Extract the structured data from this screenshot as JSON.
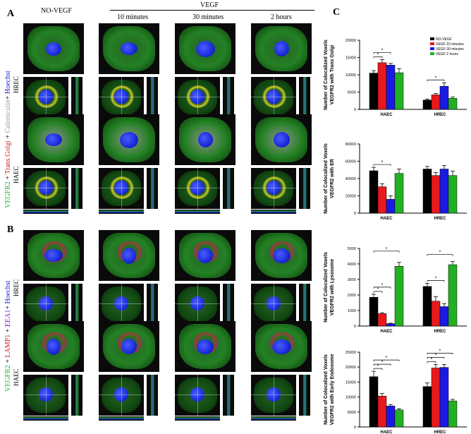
{
  "panel_labels": {
    "a": "A",
    "b": "B",
    "c": "C"
  },
  "headers": {
    "no_vegf": "NO-VEGF",
    "vegf": "VEGF",
    "t10": "10 minutes",
    "t30": "30 minutes",
    "t2h": "2 hours"
  },
  "rows": {
    "hrec": "HREC",
    "haec": "HAEC"
  },
  "side_titles": {
    "a": [
      "VEGFR2",
      " + ",
      "Trans Golgi",
      " + ",
      "Calreticulin",
      "+ ",
      "Hoechst"
    ],
    "b": [
      "VEGFR2",
      " + ",
      "LAMP1",
      " + ",
      "EEA1",
      "+ ",
      "Hoechst"
    ]
  },
  "colors": {
    "black": "#000000",
    "red": "#e8191c",
    "blue": "#1a1ae6",
    "green": "#22b022",
    "vegfr2": "#2bb32b",
    "golgi": "#d42020",
    "calreticulin": "#999999",
    "hoechst": "#2020d0",
    "lamp1": "#d42020",
    "eea1": "#7a2ad0"
  },
  "chart_data": [
    {
      "type": "bar",
      "ylabel": "Number of Colocalized Voxels VEGFR2 with Trans Golgi",
      "categories": [
        "HAEC",
        "HREC"
      ],
      "ylim": [
        0,
        20000
      ],
      "yticks": [
        "0",
        "5000",
        "10000",
        "15000",
        "20000"
      ],
      "legend": [
        "NO-VEGF",
        "VEGF-10 minutes",
        "VEGF-30 minutes",
        "VEGF-2 hours"
      ],
      "legend_position": "top-right",
      "series": [
        {
          "name": "NO-VEGF",
          "values": [
            10500,
            2700
          ],
          "errors": [
            700,
            300
          ]
        },
        {
          "name": "VEGF-10 minutes",
          "values": [
            13500,
            4200
          ],
          "errors": [
            900,
            400
          ]
        },
        {
          "name": "VEGF-30 minutes",
          "values": [
            12800,
            6700
          ],
          "errors": [
            500,
            1000
          ]
        },
        {
          "name": "VEGF-2 hours",
          "values": [
            10600,
            3200
          ],
          "errors": [
            1200,
            400
          ]
        }
      ],
      "significance": [
        {
          "group": 0,
          "from": 0,
          "to": 1,
          "label": "*"
        },
        {
          "group": 0,
          "from": 0,
          "to": 2,
          "label": "*"
        },
        {
          "group": 1,
          "from": 0,
          "to": 2,
          "label": "*"
        }
      ]
    },
    {
      "type": "bar",
      "ylabel": "Number of Colocalized Voxels VEGFR2 with ER",
      "categories": [
        "HAEC",
        "HREC"
      ],
      "ylim": [
        0,
        80000
      ],
      "yticks": [
        "0",
        "20000",
        "40000",
        "60000",
        "80000"
      ],
      "series": [
        {
          "name": "NO-VEGF",
          "values": [
            49000,
            51000
          ],
          "errors": [
            4000,
            3000
          ]
        },
        {
          "name": "VEGF-10 minutes",
          "values": [
            30500,
            43500
          ],
          "errors": [
            3500,
            3500
          ]
        },
        {
          "name": "VEGF-30 minutes",
          "values": [
            16000,
            51000
          ],
          "errors": [
            4000,
            4000
          ]
        },
        {
          "name": "VEGF-2 hours",
          "values": [
            46000,
            43500
          ],
          "errors": [
            5000,
            5000
          ]
        }
      ],
      "significance": [
        {
          "group": 0,
          "from": 0,
          "to": 2,
          "label": "*"
        }
      ]
    },
    {
      "type": "bar",
      "ylabel": "Number of Colocalized Voxels VEGFR2 with Lysosome",
      "categories": [
        "HAEC",
        "HREC"
      ],
      "ylim": [
        0,
        5000
      ],
      "yticks": [
        "0",
        "1000",
        "2000",
        "3000",
        "4000",
        "5000"
      ],
      "series": [
        {
          "name": "NO-VEGF",
          "values": [
            1850,
            2550
          ],
          "errors": [
            200,
            200
          ]
        },
        {
          "name": "VEGF-10 minutes",
          "values": [
            800,
            1600
          ],
          "errors": [
            60,
            300
          ]
        },
        {
          "name": "VEGF-30 minutes",
          "values": [
            150,
            1250
          ],
          "errors": [
            30,
            200
          ]
        },
        {
          "name": "VEGF-2 hours",
          "values": [
            3850,
            3950
          ],
          "errors": [
            250,
            200
          ]
        }
      ],
      "significance": [
        {
          "group": 0,
          "from": 0,
          "to": 1,
          "label": "*"
        },
        {
          "group": 0,
          "from": 0,
          "to": 2,
          "label": "*"
        },
        {
          "group": 0,
          "from": 0,
          "to": 3,
          "label": "*"
        },
        {
          "group": 1,
          "from": 0,
          "to": 2,
          "label": "*"
        },
        {
          "group": 1,
          "from": 0,
          "to": 3,
          "label": "*"
        }
      ]
    },
    {
      "type": "bar",
      "ylabel": "Number of Colocalized Voxels VEGFR2 with Early Endosome",
      "categories": [
        "HAEC",
        "HREC"
      ],
      "ylim": [
        0,
        25000
      ],
      "yticks": [
        "0",
        "5000",
        "10000",
        "15000",
        "20000",
        "25000"
      ],
      "series": [
        {
          "name": "NO-VEGF",
          "values": [
            16800,
            13500
          ],
          "errors": [
            1800,
            1200
          ]
        },
        {
          "name": "VEGF-10 minutes",
          "values": [
            10300,
            19700
          ],
          "errors": [
            900,
            1200
          ]
        },
        {
          "name": "VEGF-30 minutes",
          "values": [
            7000,
            19900
          ],
          "errors": [
            500,
            1000
          ]
        },
        {
          "name": "VEGF-2 hours",
          "values": [
            5700,
            8700
          ],
          "errors": [
            400,
            500
          ]
        }
      ],
      "significance": [
        {
          "group": 0,
          "from": 0,
          "to": 1,
          "label": "*"
        },
        {
          "group": 0,
          "from": 0,
          "to": 2,
          "label": "*"
        },
        {
          "group": 0,
          "from": 0,
          "to": 3,
          "label": "*"
        },
        {
          "group": 1,
          "from": 0,
          "to": 1,
          "label": "*"
        },
        {
          "group": 1,
          "from": 0,
          "to": 2,
          "label": "*"
        },
        {
          "group": 1,
          "from": 0,
          "to": 3,
          "label": "*"
        }
      ]
    }
  ]
}
